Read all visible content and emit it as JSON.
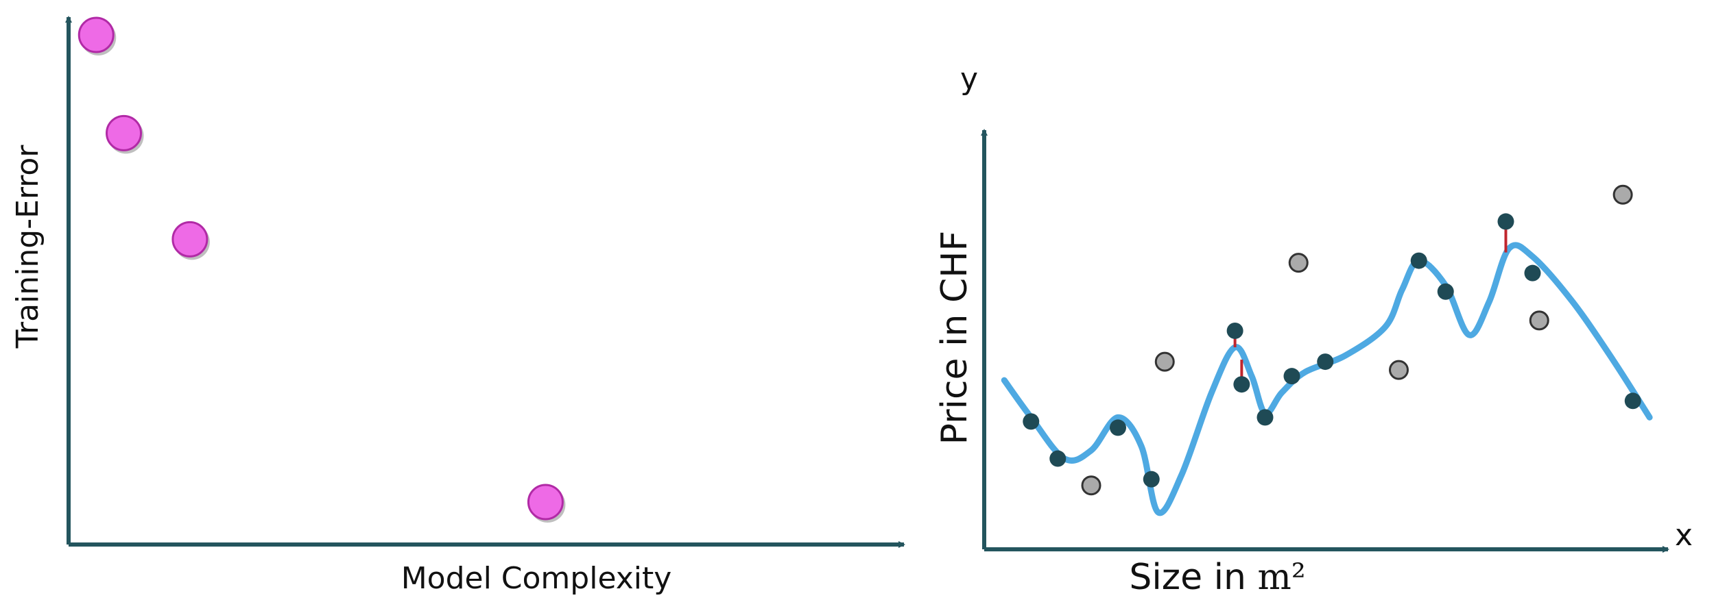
{
  "chart_data": [
    {
      "type": "scatter",
      "title": "",
      "xlabel": "Model Complexity",
      "ylabel": "Training-Error",
      "xlim": [
        0,
        10
      ],
      "ylim": [
        0,
        10
      ],
      "grid": false,
      "colors": {
        "axis": "#24555e",
        "point_fill": "#ee6ae6",
        "point_stroke": "#b12aa6"
      },
      "points": [
        {
          "x": 0.33,
          "y": 9.6
        },
        {
          "x": 0.66,
          "y": 7.75
        },
        {
          "x": 1.45,
          "y": 5.75
        },
        {
          "x": 5.7,
          "y": 0.8
        }
      ]
    },
    {
      "type": "scatter",
      "title": "",
      "xlabel_text": "Size in ",
      "xlabel_unit": "m²",
      "ylabel": "Price in CHF",
      "x_axis_letter": "x",
      "y_axis_letter": "y",
      "xlim": [
        0,
        10
      ],
      "ylim": [
        0,
        10
      ],
      "grid": false,
      "colors": {
        "axis": "#24555e",
        "train_point": "#1f4a55",
        "test_point": "#aaaaaa",
        "fit_curve": "#4ea9e2",
        "residual": "#c0262d"
      },
      "series": [
        {
          "role": "training",
          "points": [
            {
              "x": 0.7,
              "y": 3.1
            },
            {
              "x": 1.1,
              "y": 2.2
            },
            {
              "x": 2.0,
              "y": 2.95
            },
            {
              "x": 2.5,
              "y": 1.7
            },
            {
              "x": 3.75,
              "y": 5.3
            },
            {
              "x": 3.85,
              "y": 4.0
            },
            {
              "x": 4.2,
              "y": 3.2
            },
            {
              "x": 4.6,
              "y": 4.2
            },
            {
              "x": 5.1,
              "y": 4.55
            },
            {
              "x": 6.5,
              "y": 7.0
            },
            {
              "x": 6.9,
              "y": 6.25
            },
            {
              "x": 7.8,
              "y": 7.95
            },
            {
              "x": 8.2,
              "y": 6.7
            },
            {
              "x": 9.7,
              "y": 3.6
            }
          ]
        },
        {
          "role": "test",
          "points": [
            {
              "x": 1.6,
              "y": 1.55
            },
            {
              "x": 2.7,
              "y": 4.55
            },
            {
              "x": 4.7,
              "y": 6.95
            },
            {
              "x": 6.2,
              "y": 4.35
            },
            {
              "x": 8.3,
              "y": 5.55
            },
            {
              "x": 9.55,
              "y": 8.6
            }
          ]
        },
        {
          "role": "fit",
          "curve": [
            {
              "x": 0.3,
              "y": 4.1
            },
            {
              "x": 0.7,
              "y": 3.2
            },
            {
              "x": 1.2,
              "y": 2.2
            },
            {
              "x": 1.6,
              "y": 2.4
            },
            {
              "x": 2.0,
              "y": 3.2
            },
            {
              "x": 2.35,
              "y": 2.5
            },
            {
              "x": 2.6,
              "y": 0.9
            },
            {
              "x": 2.95,
              "y": 1.8
            },
            {
              "x": 3.4,
              "y": 3.8
            },
            {
              "x": 3.75,
              "y": 4.9
            },
            {
              "x": 4.0,
              "y": 4.2
            },
            {
              "x": 4.2,
              "y": 3.3
            },
            {
              "x": 4.45,
              "y": 3.8
            },
            {
              "x": 4.8,
              "y": 4.3
            },
            {
              "x": 5.4,
              "y": 4.7
            },
            {
              "x": 6.0,
              "y": 5.4
            },
            {
              "x": 6.25,
              "y": 6.3
            },
            {
              "x": 6.5,
              "y": 7.0
            },
            {
              "x": 6.9,
              "y": 6.4
            },
            {
              "x": 7.25,
              "y": 5.2
            },
            {
              "x": 7.55,
              "y": 6.0
            },
            {
              "x": 7.85,
              "y": 7.3
            },
            {
              "x": 8.2,
              "y": 7.1
            },
            {
              "x": 8.8,
              "y": 6.0
            },
            {
              "x": 9.4,
              "y": 4.6
            },
            {
              "x": 9.95,
              "y": 3.2
            }
          ],
          "residuals": [
            {
              "x": 3.75,
              "y_point": 5.3,
              "y_fit": 4.9
            },
            {
              "x": 3.85,
              "y_point": 4.0,
              "y_fit": 4.6
            },
            {
              "x": 7.8,
              "y_point": 7.95,
              "y_fit": 7.2
            }
          ]
        }
      ]
    }
  ]
}
